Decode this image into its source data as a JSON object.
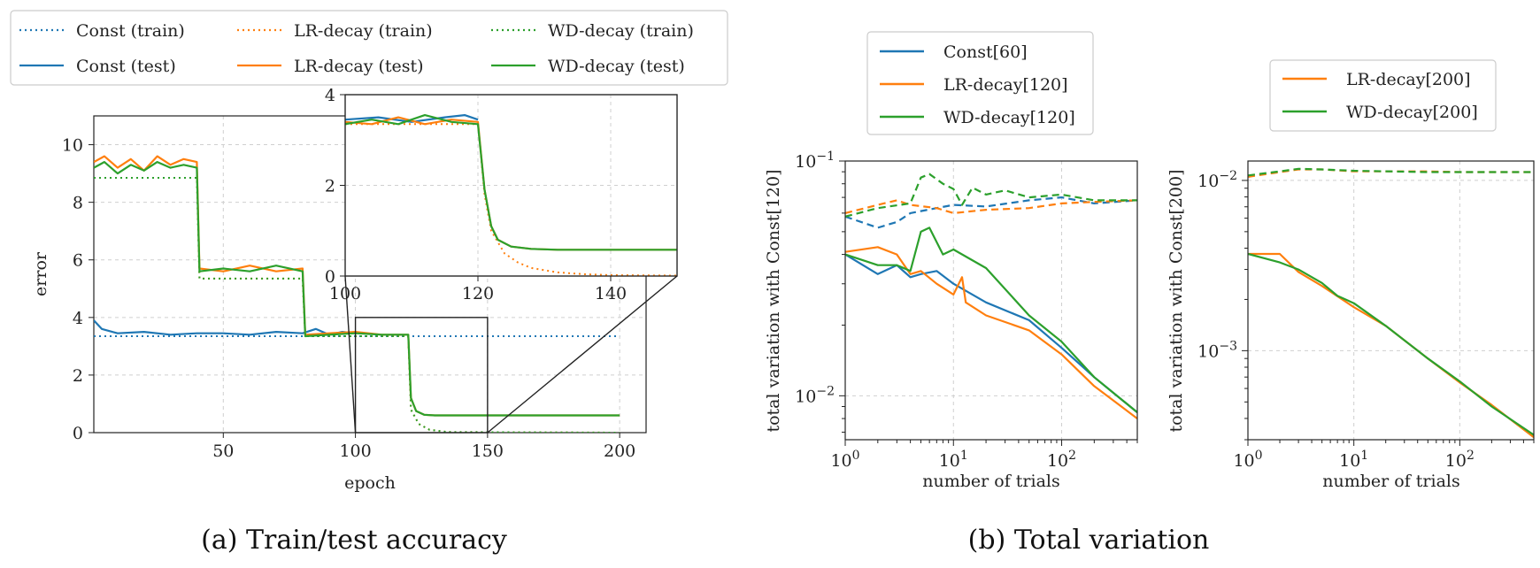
{
  "colors": {
    "const": "#1f77b4",
    "lr": "#ff7f0e",
    "wd": "#2ca02c"
  },
  "captions": {
    "a": "(a) Train/test accuracy",
    "b": "(b) Total variation"
  },
  "chart_data": [
    {
      "id": "accuracy",
      "type": "line",
      "title": "",
      "xlabel": "epoch",
      "ylabel": "error",
      "xlim": [
        1,
        210
      ],
      "ylim": [
        0,
        11
      ],
      "xticks": [
        "50",
        "100",
        "150",
        "200"
      ],
      "yticks": [
        "0",
        "2",
        "4",
        "6",
        "8",
        "10"
      ],
      "grid": true,
      "legend": {
        "placement": "top",
        "columns": 3,
        "entries": [
          "Const (train)",
          "LR-decay (train)",
          "WD-decay (train)",
          "Const (test)",
          "LR-decay (test)",
          "WD-decay (test)"
        ]
      },
      "series": [
        {
          "name": "Const (train)",
          "color": "const",
          "style": "dotted",
          "x": [
            1,
            200
          ],
          "y": [
            3.35,
            3.35
          ]
        },
        {
          "name": "LR-decay (train)",
          "color": "lr",
          "style": "dotted",
          "x": [
            1,
            40,
            41,
            80,
            81,
            120,
            121,
            124,
            128,
            135,
            200
          ],
          "y": [
            8.85,
            8.85,
            5.35,
            5.35,
            3.35,
            3.35,
            0.8,
            0.3,
            0.1,
            0.02,
            0.0
          ]
        },
        {
          "name": "WD-decay (train)",
          "color": "wd",
          "style": "dotted",
          "x": [
            1,
            40,
            41,
            80,
            81,
            120,
            121,
            124,
            128,
            135,
            200
          ],
          "y": [
            8.85,
            8.85,
            5.35,
            5.35,
            3.35,
            3.35,
            0.8,
            0.3,
            0.1,
            0.02,
            0.0
          ]
        },
        {
          "name": "Const (test)",
          "color": "const",
          "style": "solid",
          "x": [
            1,
            4,
            10,
            20,
            30,
            40,
            50,
            60,
            70,
            80,
            85,
            90,
            95,
            100
          ],
          "y": [
            3.9,
            3.6,
            3.45,
            3.5,
            3.4,
            3.45,
            3.45,
            3.4,
            3.5,
            3.45,
            3.6,
            3.4,
            3.5,
            3.45
          ]
        },
        {
          "name": "LR-decay (test)",
          "color": "lr",
          "style": "solid",
          "x": [
            1,
            5,
            10,
            15,
            20,
            25,
            30,
            35,
            40,
            41,
            50,
            60,
            70,
            80,
            81,
            90,
            100,
            110,
            120,
            121,
            123,
            126,
            130,
            200
          ],
          "y": [
            9.4,
            9.6,
            9.2,
            9.5,
            9.1,
            9.6,
            9.3,
            9.5,
            9.4,
            5.7,
            5.6,
            5.8,
            5.6,
            5.7,
            3.4,
            3.45,
            3.5,
            3.4,
            3.4,
            1.2,
            0.75,
            0.62,
            0.6,
            0.6
          ]
        },
        {
          "name": "WD-decay (test)",
          "color": "wd",
          "style": "solid",
          "x": [
            1,
            5,
            10,
            15,
            20,
            25,
            30,
            35,
            40,
            41,
            50,
            60,
            70,
            80,
            81,
            90,
            100,
            110,
            120,
            121,
            123,
            126,
            130,
            200
          ],
          "y": [
            9.2,
            9.4,
            9.0,
            9.3,
            9.1,
            9.4,
            9.2,
            9.3,
            9.2,
            5.6,
            5.7,
            5.6,
            5.8,
            5.6,
            3.35,
            3.4,
            3.45,
            3.4,
            3.4,
            1.2,
            0.75,
            0.62,
            0.6,
            0.6
          ]
        }
      ],
      "zoom_box": {
        "xlim": [
          100,
          150
        ],
        "ylim": [
          0,
          4
        ]
      },
      "inset": {
        "xlim": [
          100,
          150
        ],
        "ylim": [
          0,
          4
        ],
        "xticks": [
          "100",
          "120",
          "140"
        ],
        "yticks": [
          "0",
          "2",
          "4"
        ],
        "series": [
          {
            "name": "Const (test)",
            "color": "const",
            "style": "solid",
            "x": [
              100,
              105,
              110,
              115,
              118,
              120
            ],
            "y": [
              3.45,
              3.5,
              3.4,
              3.5,
              3.55,
              3.45
            ]
          },
          {
            "name": "LR-decay (train)",
            "color": "lr",
            "style": "dotted",
            "x": [
              100,
              120,
              121,
              122,
              124,
              126,
              128,
              132,
              136,
              140,
              150
            ],
            "y": [
              3.35,
              3.35,
              1.8,
              1.0,
              0.5,
              0.3,
              0.18,
              0.08,
              0.04,
              0.02,
              0.01
            ]
          },
          {
            "name": "LR-decay (test)",
            "color": "lr",
            "style": "solid",
            "x": [
              100,
              104,
              108,
              112,
              116,
              120,
              121,
              122,
              123,
              125,
              128,
              132,
              150
            ],
            "y": [
              3.4,
              3.35,
              3.5,
              3.35,
              3.45,
              3.4,
              1.9,
              1.1,
              0.8,
              0.65,
              0.6,
              0.58,
              0.58
            ]
          },
          {
            "name": "WD-decay (test)",
            "color": "wd",
            "style": "solid",
            "x": [
              100,
              104,
              108,
              112,
              116,
              120,
              121,
              122,
              123,
              125,
              128,
              132,
              150
            ],
            "y": [
              3.35,
              3.45,
              3.35,
              3.55,
              3.4,
              3.35,
              1.9,
              1.1,
              0.8,
              0.65,
              0.6,
              0.58,
              0.58
            ]
          }
        ]
      }
    },
    {
      "id": "tv120",
      "type": "line",
      "title": "",
      "xlabel": "number of trials",
      "ylabel": "total variation with Const[120]",
      "xscale": "log",
      "yscale": "log",
      "xlim": [
        1,
        500
      ],
      "ylim": [
        0.0065,
        0.1
      ],
      "grid": true,
      "legend": {
        "placement": "top",
        "entries": [
          "Const[60]",
          "LR-decay[120]",
          "WD-decay[120]"
        ]
      },
      "series": [
        {
          "name": "Const[60]",
          "color": "const",
          "style": "solid",
          "x": [
            1,
            2,
            3,
            4,
            5,
            7,
            10,
            20,
            50,
            100,
            200,
            500
          ],
          "y": [
            0.04,
            0.033,
            0.036,
            0.032,
            0.033,
            0.034,
            0.03,
            0.025,
            0.021,
            0.016,
            0.012,
            0.0085
          ]
        },
        {
          "name": "LR-decay[120]",
          "color": "lr",
          "style": "solid",
          "x": [
            1,
            2,
            3,
            4,
            5,
            7,
            10,
            12,
            13,
            20,
            50,
            100,
            200,
            500
          ],
          "y": [
            0.041,
            0.043,
            0.04,
            0.033,
            0.034,
            0.03,
            0.027,
            0.032,
            0.025,
            0.022,
            0.019,
            0.015,
            0.011,
            0.008
          ]
        },
        {
          "name": "WD-decay[120]",
          "color": "wd",
          "style": "solid",
          "x": [
            1,
            2,
            3,
            4,
            5,
            6,
            8,
            10,
            20,
            50,
            100,
            200,
            500
          ],
          "y": [
            0.04,
            0.036,
            0.036,
            0.034,
            0.05,
            0.052,
            0.04,
            0.042,
            0.035,
            0.022,
            0.017,
            0.012,
            0.0085
          ]
        },
        {
          "name": "",
          "color": "const",
          "style": "dashed",
          "x": [
            1,
            2,
            3,
            4,
            7,
            10,
            20,
            50,
            100,
            200,
            500
          ],
          "y": [
            0.058,
            0.052,
            0.055,
            0.06,
            0.063,
            0.065,
            0.064,
            0.068,
            0.07,
            0.066,
            0.068
          ]
        },
        {
          "name": "",
          "color": "lr",
          "style": "dashed",
          "x": [
            1,
            2,
            3,
            4,
            7,
            10,
            20,
            50,
            100,
            200,
            500
          ],
          "y": [
            0.06,
            0.065,
            0.068,
            0.065,
            0.063,
            0.06,
            0.062,
            0.063,
            0.066,
            0.067,
            0.068
          ]
        },
        {
          "name": "",
          "color": "wd",
          "style": "dashed",
          "x": [
            1,
            2,
            4,
            5,
            6,
            8,
            10,
            12,
            15,
            20,
            30,
            50,
            100,
            200,
            500
          ],
          "y": [
            0.058,
            0.063,
            0.066,
            0.085,
            0.088,
            0.08,
            0.076,
            0.065,
            0.077,
            0.072,
            0.075,
            0.07,
            0.072,
            0.068,
            0.068
          ]
        }
      ]
    },
    {
      "id": "tv200",
      "type": "line",
      "title": "",
      "xlabel": "number of trials",
      "ylabel": "total variation with Const[200]",
      "xscale": "log",
      "yscale": "log",
      "xlim": [
        1,
        500
      ],
      "ylim": [
        0.0003,
        0.013
      ],
      "grid": true,
      "legend": {
        "placement": "top",
        "entries": [
          "LR-decay[200]",
          "WD-decay[200]"
        ]
      },
      "series": [
        {
          "name": "LR-decay[200]",
          "color": "lr",
          "style": "solid",
          "x": [
            1,
            2,
            3,
            5,
            10,
            20,
            50,
            100,
            200,
            500
          ],
          "y": [
            0.0037,
            0.0037,
            0.0029,
            0.0024,
            0.0018,
            0.0014,
            0.0009,
            0.00065,
            0.00048,
            0.00031
          ]
        },
        {
          "name": "WD-decay[200]",
          "color": "wd",
          "style": "solid",
          "x": [
            1,
            2,
            3,
            5,
            7,
            10,
            20,
            50,
            100,
            200,
            500
          ],
          "y": [
            0.0037,
            0.0033,
            0.003,
            0.0025,
            0.0021,
            0.0019,
            0.0014,
            0.0009,
            0.00066,
            0.00047,
            0.00032
          ]
        },
        {
          "name": "",
          "color": "lr",
          "style": "dashed",
          "x": [
            1,
            2,
            3,
            5,
            10,
            50,
            100,
            500
          ],
          "y": [
            0.0105,
            0.0112,
            0.0116,
            0.0116,
            0.0113,
            0.0113,
            0.0112,
            0.0112
          ]
        },
        {
          "name": "",
          "color": "wd",
          "style": "dashed",
          "x": [
            1,
            2,
            3,
            5,
            10,
            50,
            100,
            500
          ],
          "y": [
            0.0107,
            0.0113,
            0.0117,
            0.0116,
            0.0114,
            0.0112,
            0.0112,
            0.0112
          ]
        }
      ]
    }
  ]
}
